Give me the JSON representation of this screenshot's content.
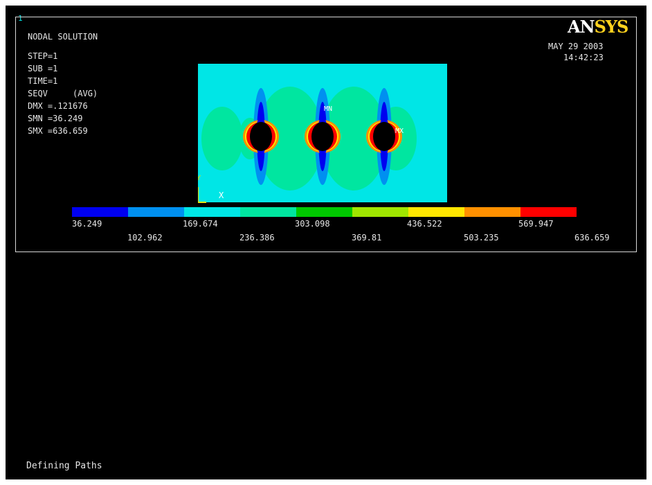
{
  "window": {
    "number": "1"
  },
  "brand": {
    "part1": "AN",
    "part2": "SYS"
  },
  "header": {
    "lines": [
      "NODAL SOLUTION",
      "",
      "STEP=1",
      "SUB =1",
      "TIME=1",
      "SEQV     (AVG)",
      "DMX =.121676",
      "SMN =36.249",
      "SMX =636.659"
    ],
    "date": "MAY 29 2003",
    "time": "14:42:23"
  },
  "plot": {
    "markers": {
      "min": "MN",
      "max": "MX"
    },
    "triad": {
      "x": "X",
      "y": "Y"
    }
  },
  "legend": {
    "colors": [
      "#0000f0",
      "#0090f0",
      "#00e6e6",
      "#00e6a0",
      "#00c800",
      "#a0e600",
      "#ffe600",
      "#ff9000",
      "#ff0000"
    ],
    "upper_labels": [
      "36.249",
      "169.674",
      "303.098",
      "436.522",
      "569.947"
    ],
    "lower_labels": [
      "102.962",
      "236.386",
      "369.81",
      "503.235",
      "636.659"
    ]
  },
  "status": {
    "text": "Defining Paths"
  }
}
